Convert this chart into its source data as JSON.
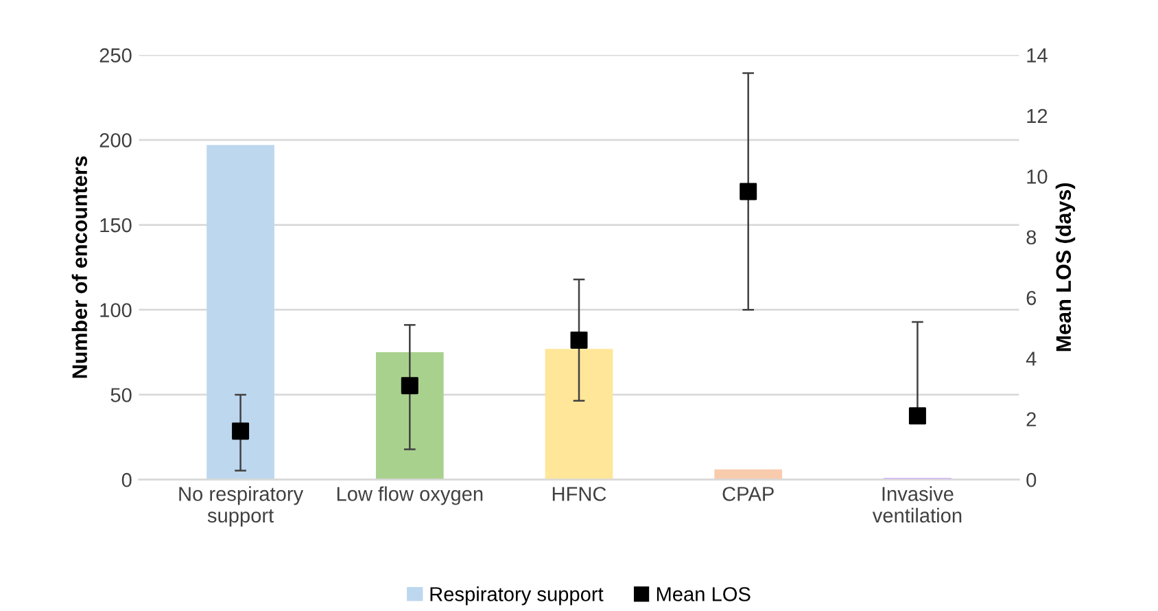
{
  "chart_data": {
    "type": "bar",
    "categories": [
      "No respiratory\nsupport",
      "Low flow oxygen",
      "HFNC",
      "CPAP",
      "Invasive\nventilation"
    ],
    "ylabel": "Number of encounters",
    "y2label": "Mean LOS (days)",
    "series": [
      {
        "name": "Respiratory support",
        "color": "#bdd7ee",
        "colors": [
          "#bdd7ee",
          "#a9d18e",
          "#ffe699",
          "#f8cbad",
          "#cc99ff"
        ],
        "values": [
          197,
          75,
          77,
          6,
          1
        ]
      },
      {
        "name": "Mean LOS",
        "type": "scatter",
        "axis": "y2",
        "color": "#000000",
        "marker": "square",
        "values": [
          1.6,
          3.1,
          4.6,
          9.5,
          2.1
        ],
        "errors": [
          [
            0.3,
            2.8
          ],
          [
            1.0,
            5.1
          ],
          [
            2.6,
            6.6
          ],
          [
            5.6,
            13.4
          ],
          [
            2.1,
            5.2
          ]
        ]
      }
    ],
    "ylim": [
      0,
      250
    ],
    "yticks": [
      0,
      50,
      100,
      150,
      200,
      250
    ],
    "y2lim": [
      0,
      14
    ],
    "y2ticks": [
      0,
      2,
      4,
      6,
      8,
      10,
      12,
      14
    ],
    "grid": "y",
    "legend": "bottom"
  }
}
